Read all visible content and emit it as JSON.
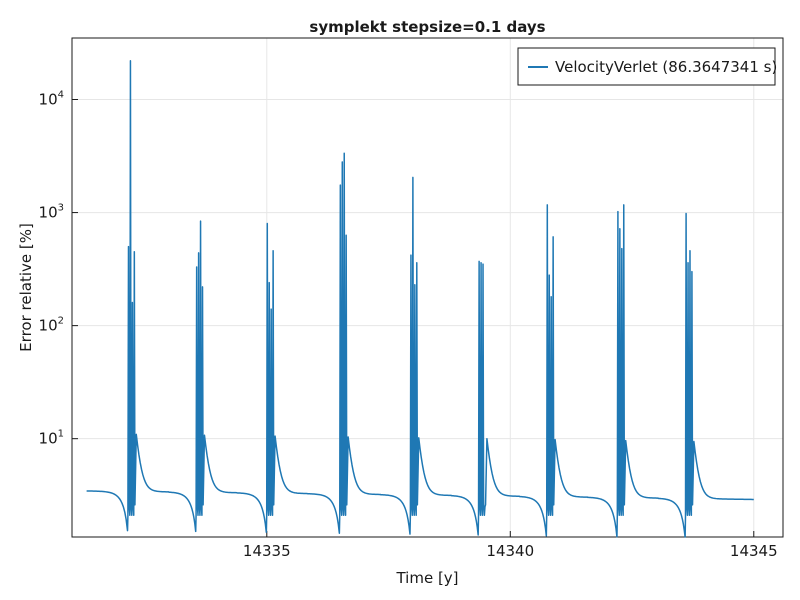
{
  "chart_data": {
    "type": "line",
    "title": "symplekt stepsize=0.1 days",
    "xlabel": "Time [y]",
    "ylabel": "Error relative [%]",
    "x_scale": "linear",
    "y_scale": "log10",
    "xlim": [
      14331.0,
      14345.6
    ],
    "ylim": [
      1.35,
      35000
    ],
    "xticks": [
      14335,
      14340,
      14345
    ],
    "xtick_labels": [
      "14335",
      "14340",
      "14345"
    ],
    "yticks": [
      10,
      100,
      1000,
      10000
    ],
    "ytick_labels": [
      {
        "base": "10",
        "exp": "1"
      },
      {
        "base": "10",
        "exp": "2"
      },
      {
        "base": "10",
        "exp": "3"
      },
      {
        "base": "10",
        "exp": "4"
      }
    ],
    "grid": true,
    "legend_position": "top-right",
    "line_color": "#1f78b4",
    "series": [
      {
        "name": "VelocityVerlet (86.3647341 s)",
        "x_range": [
          14331.3,
          14345.0
        ],
        "baseline_start": 3.45,
        "baseline_end": 2.9,
        "spikes": [
          {
            "x": 14332.2,
            "peaks": [
              500,
              22000,
              160,
              450
            ]
          },
          {
            "x": 14333.6,
            "peaks": [
              330,
              440,
              840,
              220
            ]
          },
          {
            "x": 14335.05,
            "peaks": [
              800,
              240,
              140,
              460
            ]
          },
          {
            "x": 14336.55,
            "peaks": [
              1750,
              2800,
              3350,
              630
            ]
          },
          {
            "x": 14338.0,
            "peaks": [
              420,
              2050,
              230,
              360
            ]
          },
          {
            "x": 14339.4,
            "peaks": [
              370,
              360,
              350,
              2.5
            ]
          },
          {
            "x": 14340.8,
            "peaks": [
              1170,
              280,
              180,
              610
            ]
          },
          {
            "x": 14342.25,
            "peaks": [
              1020,
              720,
              480,
              1170
            ]
          },
          {
            "x": 14343.65,
            "peaks": [
              980,
              360,
              460,
              300
            ]
          }
        ]
      }
    ]
  }
}
